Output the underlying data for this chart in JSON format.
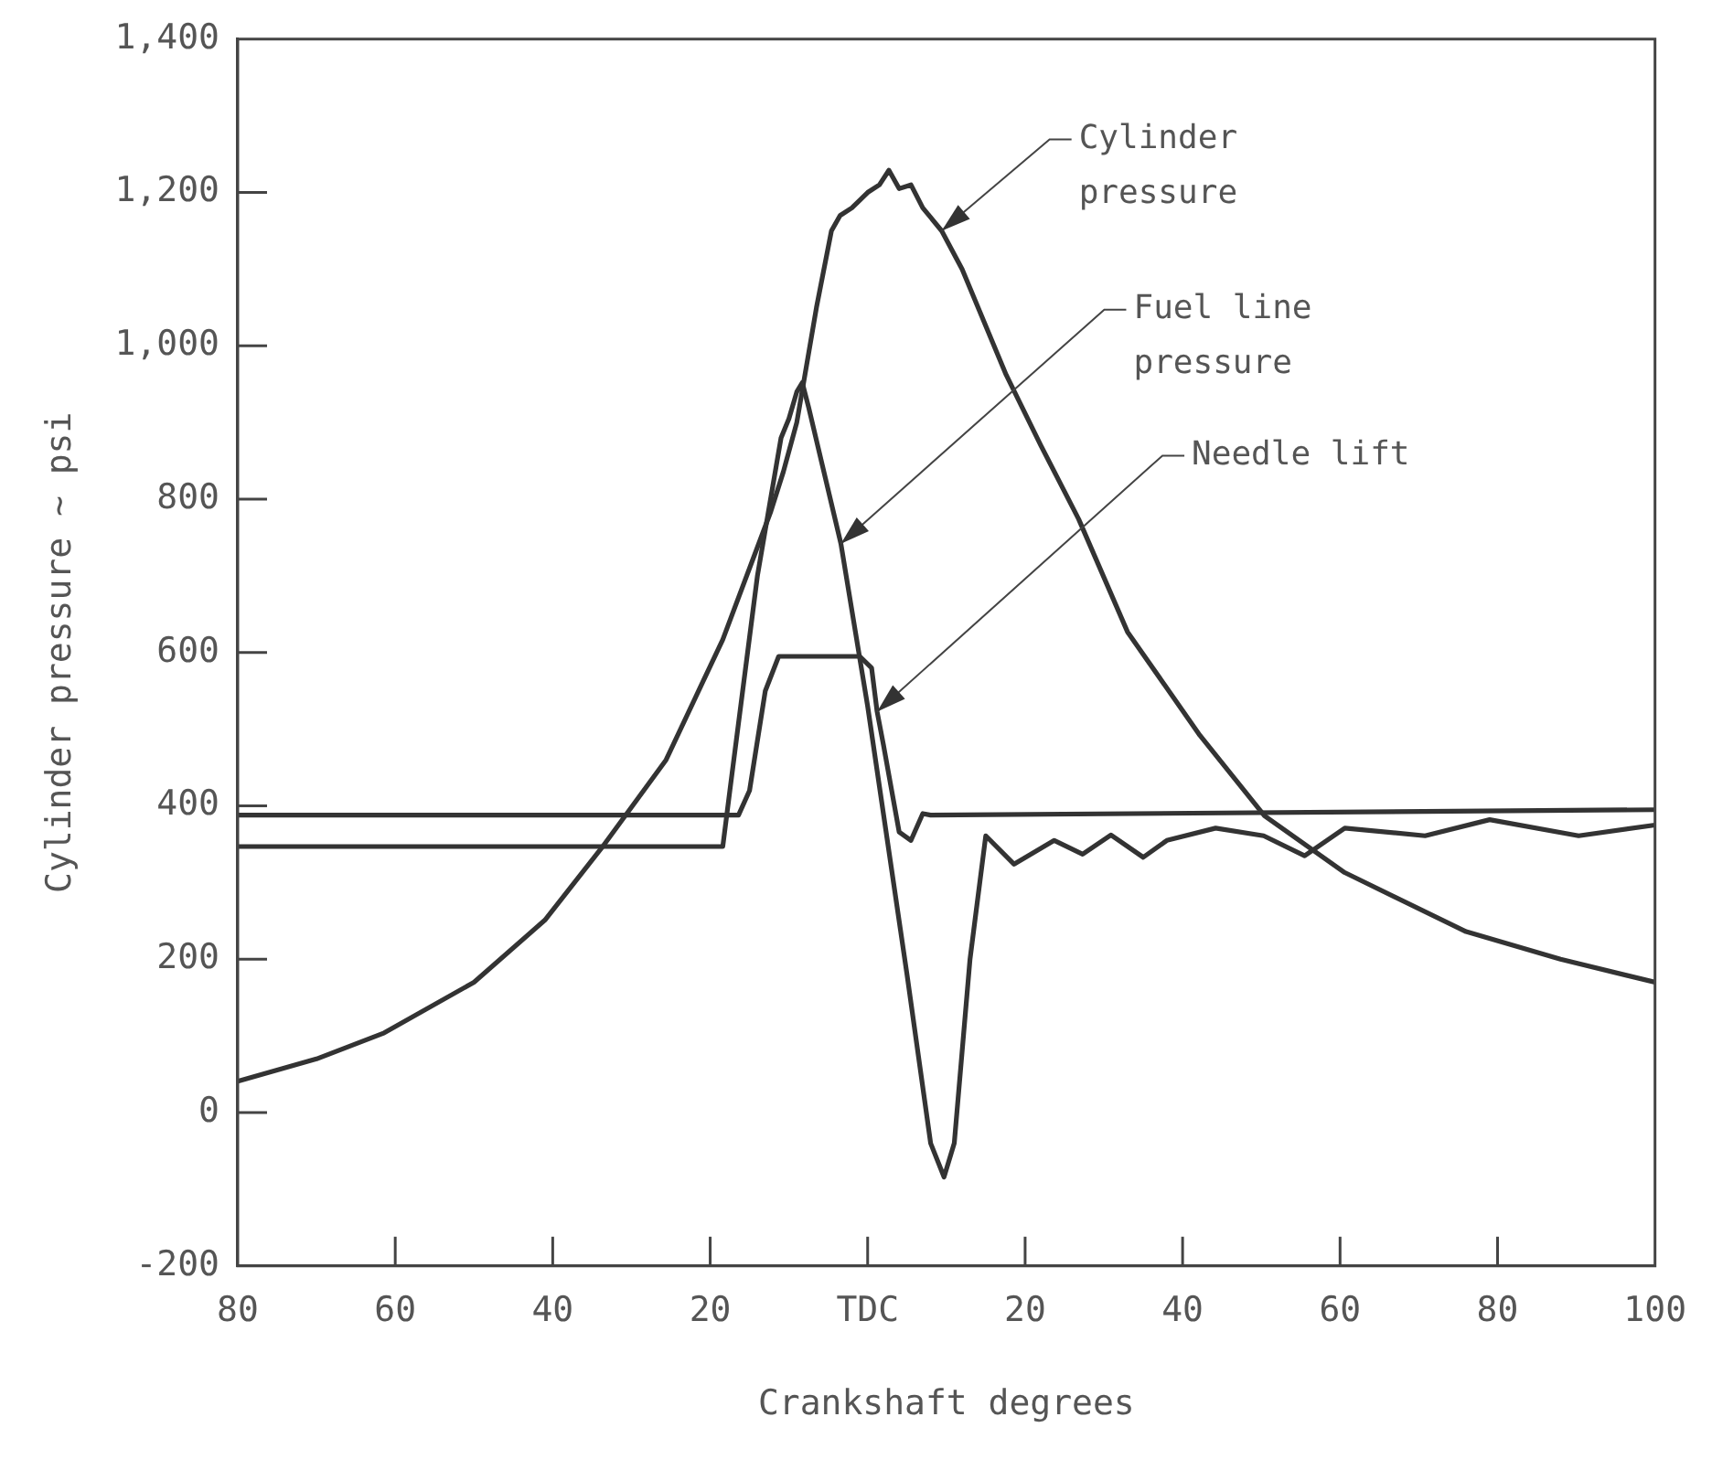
{
  "chart_data": {
    "type": "line",
    "xlabel": "Crankshaft degrees",
    "ylabel": "Cylinder pressure ~ psi",
    "xlim": [
      -80,
      100
    ],
    "xticks": [
      {
        "value": -80,
        "label": "80"
      },
      {
        "value": -60,
        "label": "60"
      },
      {
        "value": -40,
        "label": "40"
      },
      {
        "value": -20,
        "label": "20"
      },
      {
        "value": 0,
        "label": "TDC"
      },
      20,
      40,
      60,
      80,
      100
    ],
    "ylim": [
      -200,
      1400
    ],
    "yticks": [
      -200,
      0,
      200,
      400,
      600,
      800,
      {
        "value": 1000,
        "label": "1,000"
      },
      {
        "value": 1200,
        "label": "1,200"
      },
      {
        "value": 1400,
        "label": "1,400"
      }
    ],
    "grid": false,
    "legend": false,
    "marker": "none",
    "line_style": "solid",
    "series": [
      {
        "name": "Cylinder pressure",
        "color": "#333333",
        "x": [
          -80,
          -70,
          -61.4,
          -50,
          -41,
          -33.8,
          -25.6,
          -18.4,
          -12.3,
          -10.7,
          -9,
          -6.5,
          -4.6,
          -3.5,
          -2,
          0,
          1.5,
          2.7,
          4,
          5.5,
          7,
          9.4,
          12,
          17.6,
          22,
          26.8,
          33,
          42.2,
          50.4,
          60.6,
          76,
          88,
          100
        ],
        "values": [
          41,
          70,
          104,
          170,
          251,
          345,
          460,
          617,
          784,
          836,
          900,
          1050,
          1150,
          1170,
          1180,
          1200,
          1210,
          1229,
          1205,
          1210,
          1180,
          1150,
          1100,
          962,
          870,
          774,
          627,
          492,
          387,
          313,
          236,
          200,
          170
        ]
      },
      {
        "name": "Fuel line pressure",
        "color": "#333333",
        "x": [
          -80,
          -18.4,
          -17.5,
          -14,
          -11,
          -10,
          -9,
          -8.3,
          -7.5,
          -3.4,
          0,
          5,
          8,
          9.7,
          11,
          13,
          15,
          18.6,
          23.7,
          27.3,
          30.9,
          35,
          38,
          44.2,
          50.3,
          55.5,
          60.6,
          70.8,
          79,
          90.3,
          100
        ],
        "values": [
          347,
          347,
          420,
          700,
          880,
          905,
          940,
          952,
          920,
          742,
          530,
          180,
          -40,
          -84,
          -40,
          200,
          361,
          324,
          355,
          337,
          362,
          333,
          355,
          371,
          361,
          335,
          371,
          361,
          382,
          361,
          375
        ]
      },
      {
        "name": "Needle lift",
        "color": "#333333",
        "x": [
          -80,
          -16.4,
          -15,
          -13,
          -11.3,
          -1,
          0.5,
          1.2,
          2,
          4,
          5.5,
          7,
          8,
          100
        ],
        "values": [
          388,
          388,
          420,
          550,
          595,
          595,
          580,
          523,
          480,
          366,
          355,
          390,
          388,
          395
        ]
      }
    ]
  }
}
